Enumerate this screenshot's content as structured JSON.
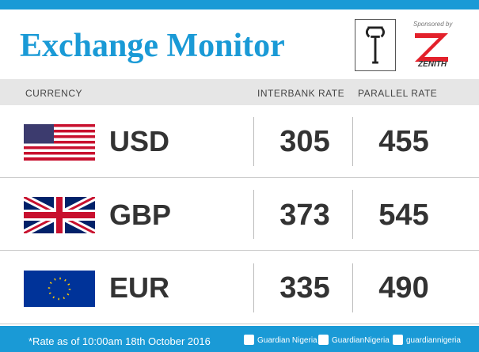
{
  "header": {
    "title": "Exchange Monitor",
    "sponsor_label": "Sponsored by",
    "sponsor_name": "ZENITH"
  },
  "table": {
    "headers": [
      "CURRENCY",
      "INTERBANK RATE",
      "PARALLEL RATE"
    ],
    "rows": [
      [
        "USD",
        305,
        455
      ],
      [
        "GBP",
        373,
        545
      ],
      [
        "EUR",
        335,
        490
      ]
    ]
  },
  "footer": {
    "note": "*Rate as of 10:00am 18th October 2016",
    "socials": [
      "Guardian Nigeria",
      "GuardianNigeria",
      "guardiannigeria"
    ]
  }
}
